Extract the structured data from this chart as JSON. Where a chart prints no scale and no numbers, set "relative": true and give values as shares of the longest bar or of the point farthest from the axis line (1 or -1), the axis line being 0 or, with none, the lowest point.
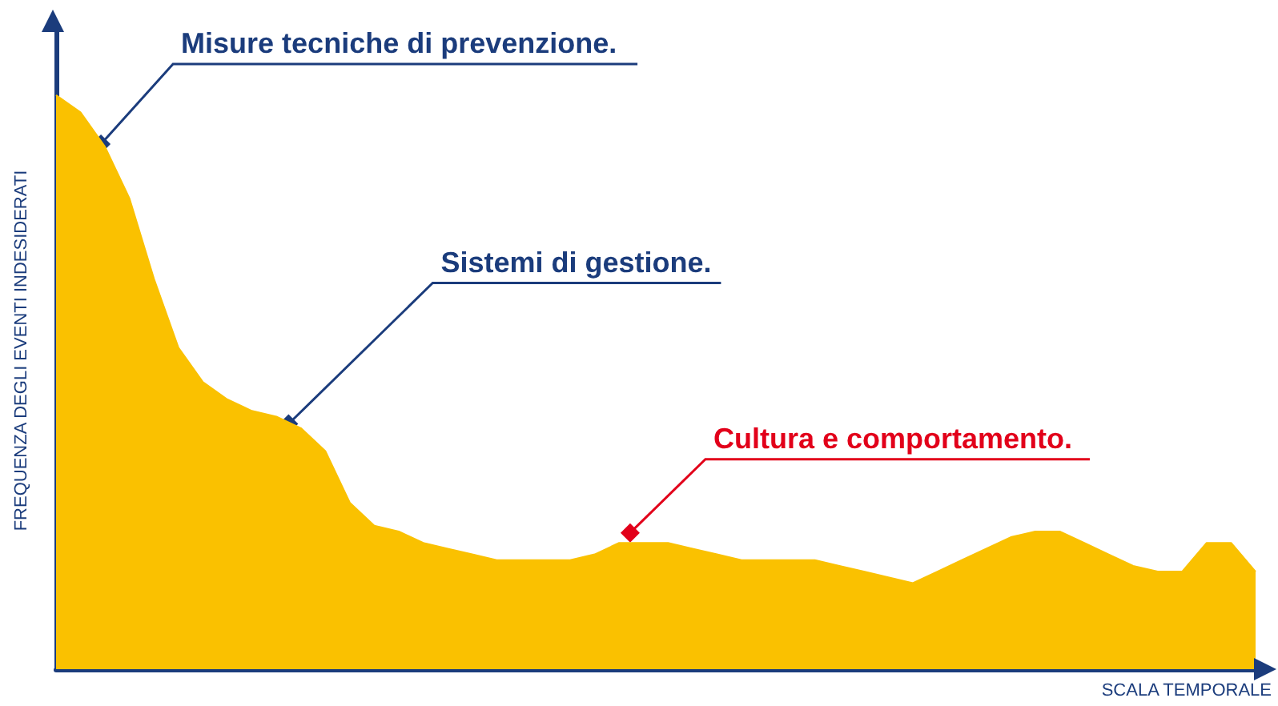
{
  "chart_data": {
    "type": "area",
    "relative": true,
    "xlabel": "SCALA TEMPORALE",
    "ylabel": "FREQUENZA DEGLI EVENTI INDESIDERATI",
    "tick_labels": false,
    "marker": "none",
    "categories": [
      null,
      null,
      null,
      null,
      null,
      null,
      null,
      null,
      null,
      null,
      null,
      null,
      null,
      null,
      null,
      null,
      null,
      null,
      null,
      null,
      null,
      null,
      null,
      null,
      null,
      null,
      null,
      null,
      null,
      null,
      null,
      null,
      null,
      null,
      null,
      null,
      null,
      null,
      null,
      null,
      null,
      null,
      null,
      null,
      null,
      null,
      null,
      null,
      null,
      null
    ],
    "series": [
      {
        "color": "#fac100",
        "values": [
          1,
          0.97,
          0.91,
          0.82,
          0.68,
          0.56,
          0.5,
          0.47,
          0.45,
          0.44,
          0.42,
          0.38,
          0.29,
          0.25,
          0.24,
          0.22,
          0.21,
          0.2,
          0.19,
          0.19,
          0.19,
          0.19,
          0.2,
          0.22,
          0.22,
          0.22,
          0.21,
          0.2,
          0.19,
          0.19,
          0.19,
          0.19,
          0.18,
          0.17,
          0.16,
          0.15,
          0.17,
          0.19,
          0.21,
          0.23,
          0.24,
          0.24,
          0.22,
          0.2,
          0.18,
          0.17,
          0.17,
          0.22,
          0.22,
          0.17
        ]
      }
    ],
    "annotations": [
      "Misure tecniche di prevenzione.",
      "Sistemi di gestione.",
      "Cultura e comportamento."
    ]
  }
}
